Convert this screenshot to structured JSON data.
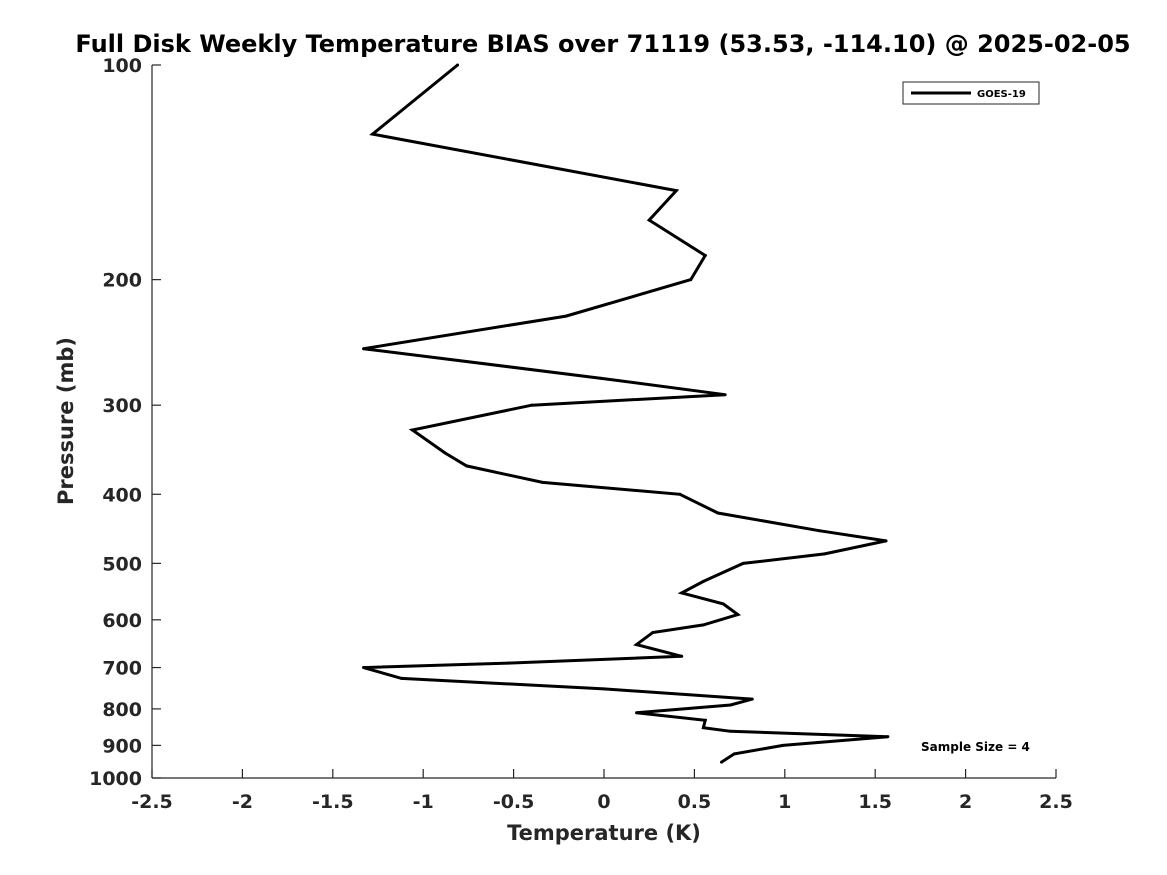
{
  "chart_data": {
    "type": "line",
    "title": "Full Disk Weekly Temperature BIAS over 71119 (53.53, -114.10) @ 2025-02-05",
    "xlabel": "Temperature (K)",
    "ylabel": "Pressure (mb)",
    "xlim": [
      -2.5,
      2.5
    ],
    "ylim": [
      100,
      1000
    ],
    "y_scale": "log",
    "y_reversed": true,
    "x_ticks": [
      "-2.5",
      "-2",
      "-1.5",
      "-1",
      "-0.5",
      "0",
      "0.5",
      "1",
      "1.5",
      "2",
      "2.5"
    ],
    "y_ticks": [
      "100",
      "200",
      "300",
      "400",
      "500",
      "600",
      "700",
      "800",
      "900",
      "1000"
    ],
    "grid": false,
    "legend_position": "top-right",
    "annotation": "Sample Size = 4",
    "line_color": "#000000",
    "series": [
      {
        "name": "GOES-19",
        "x": [
          -0.81,
          -1.28,
          0.4,
          0.25,
          0.56,
          0.48,
          -0.21,
          -1.33,
          -0.02,
          0.67,
          -0.4,
          -1.06,
          -0.88,
          -0.76,
          -0.34,
          0.42,
          0.63,
          1.19,
          1.56,
          1.22,
          0.77,
          0.55,
          0.43,
          0.66,
          0.74,
          0.55,
          0.27,
          0.18,
          0.43,
          -0.53,
          -1.33,
          -1.12,
          0.0,
          0.82,
          0.7,
          0.18,
          0.56,
          0.55,
          0.7,
          1.57,
          0.99,
          0.72,
          0.65
        ],
        "y": [
          100,
          125,
          150,
          165,
          185,
          200,
          225,
          250,
          275,
          290,
          300,
          325,
          350,
          365,
          385,
          400,
          425,
          450,
          465,
          485,
          500,
          530,
          550,
          570,
          590,
          610,
          625,
          650,
          675,
          690,
          700,
          725,
          750,
          775,
          790,
          810,
          830,
          850,
          860,
          875,
          900,
          925,
          950
        ]
      }
    ]
  }
}
